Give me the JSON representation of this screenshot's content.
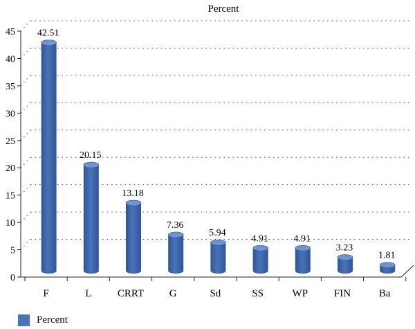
{
  "chart_data": {
    "type": "bar",
    "title": "Percent",
    "categories": [
      "F",
      "L",
      "CRRT",
      "G",
      "Sd",
      "SS",
      "WP",
      "FIN",
      "Ba"
    ],
    "series": [
      {
        "name": "Percent",
        "values": [
          42.51,
          20.15,
          13.18,
          7.36,
          5.94,
          4.91,
          4.91,
          3.23,
          1.81
        ]
      }
    ],
    "data_labels": [
      "42.51",
      "20.15",
      "13.18",
      "7.36",
      "5.94",
      "4.91",
      "4.91",
      "3.23",
      "1.81"
    ],
    "yticks": [
      "0",
      "5",
      "10",
      "15",
      "20",
      "25",
      "30",
      "35",
      "40",
      "45"
    ],
    "ylim": [
      0,
      45
    ],
    "grid": true,
    "legend_position": "bottom-left",
    "colors": {
      "bar": "#4a72b8",
      "bar_dark": "#2f5597",
      "bar_top": "#6f94d1"
    }
  }
}
